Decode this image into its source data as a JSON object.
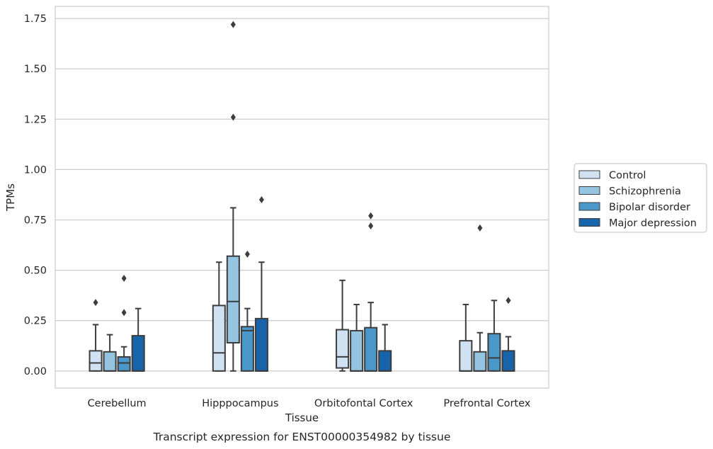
{
  "chart_data": {
    "type": "box",
    "title": "",
    "xlabel": "Tissue",
    "ylabel": "TPMs",
    "caption": "Transcript expression for ENST00000354982 by tissue",
    "categories": [
      "Cerebellum",
      "Hipppocampus",
      "Orbitofontal Cortex",
      "Prefrontal Cortex"
    ],
    "ylim": [
      -0.085,
      1.81
    ],
    "yticks": [
      0.0,
      0.25,
      0.5,
      0.75,
      1.0,
      1.25,
      1.5,
      1.75
    ],
    "ytick_labels": [
      "0.00",
      "0.25",
      "0.50",
      "0.75",
      "1.00",
      "1.25",
      "1.50",
      "1.75"
    ],
    "grid": "horizontal",
    "legend_position": "right",
    "series": [
      {
        "name": "Control",
        "color": "#d0e1f2",
        "boxes": [
          {
            "low": 0.0,
            "q1": 0.0,
            "median": 0.04,
            "q3": 0.1,
            "high": 0.23,
            "outliers": [
              0.34
            ]
          },
          {
            "low": 0.0,
            "q1": 0.0,
            "median": 0.09,
            "q3": 0.325,
            "high": 0.54,
            "outliers": []
          },
          {
            "low": 0.0,
            "q1": 0.015,
            "median": 0.07,
            "q3": 0.205,
            "high": 0.45,
            "outliers": []
          },
          {
            "low": 0.0,
            "q1": 0.0,
            "median": 0.0,
            "q3": 0.15,
            "high": 0.33,
            "outliers": []
          }
        ]
      },
      {
        "name": "Schizophrenia",
        "color": "#94c4df",
        "boxes": [
          {
            "low": 0.0,
            "q1": 0.0,
            "median": 0.0,
            "q3": 0.095,
            "high": 0.18,
            "outliers": []
          },
          {
            "low": 0.0,
            "q1": 0.14,
            "median": 0.345,
            "q3": 0.57,
            "high": 0.81,
            "outliers": [
              1.26,
              1.72
            ]
          },
          {
            "low": 0.0,
            "q1": 0.0,
            "median": 0.0,
            "q3": 0.2,
            "high": 0.33,
            "outliers": []
          },
          {
            "low": 0.0,
            "q1": 0.0,
            "median": 0.0,
            "q3": 0.095,
            "high": 0.19,
            "outliers": [
              0.71
            ]
          }
        ]
      },
      {
        "name": "Bipolar disorder",
        "color": "#4a98c9",
        "boxes": [
          {
            "low": 0.0,
            "q1": 0.0,
            "median": 0.04,
            "q3": 0.07,
            "high": 0.12,
            "outliers": [
              0.29,
              0.46
            ]
          },
          {
            "low": 0.0,
            "q1": 0.0,
            "median": 0.2,
            "q3": 0.22,
            "high": 0.31,
            "outliers": [
              0.58
            ]
          },
          {
            "low": 0.0,
            "q1": 0.0,
            "median": 0.0,
            "q3": 0.215,
            "high": 0.34,
            "outliers": [
              0.72,
              0.77
            ]
          },
          {
            "low": 0.0,
            "q1": 0.0,
            "median": 0.065,
            "q3": 0.185,
            "high": 0.35,
            "outliers": []
          }
        ]
      },
      {
        "name": "Major depression",
        "color": "#1764ab",
        "boxes": [
          {
            "low": 0.0,
            "q1": 0.0,
            "median": 0.0,
            "q3": 0.175,
            "high": 0.31,
            "outliers": []
          },
          {
            "low": 0.0,
            "q1": 0.0,
            "median": 0.0,
            "q3": 0.26,
            "high": 0.54,
            "outliers": [
              0.85
            ]
          },
          {
            "low": 0.0,
            "q1": 0.0,
            "median": 0.0,
            "q3": 0.1,
            "high": 0.23,
            "outliers": []
          },
          {
            "low": 0.0,
            "q1": 0.0,
            "median": 0.0,
            "q3": 0.1,
            "high": 0.17,
            "outliers": [
              0.35
            ]
          }
        ]
      }
    ]
  }
}
